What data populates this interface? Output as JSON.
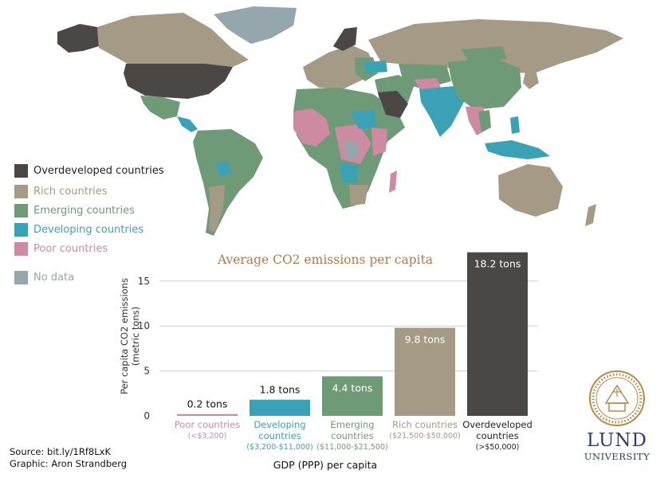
{
  "colors": {
    "overdeveloped": "#4a4745",
    "rich": "#a59a86",
    "emerging": "#6f9a78",
    "developing": "#3aa2b4",
    "poor": "#cd8aa0",
    "no_data": "#95a6ad",
    "axis_text": "#333333",
    "title": "#b07a4e",
    "logo": "#2a3e73",
    "seal": "#b48a4a"
  },
  "legend": [
    {
      "key": "overdeveloped",
      "label": "Overdeveloped countries",
      "text_color": "#222222"
    },
    {
      "key": "rich",
      "label": "Rich countries",
      "text_color": "#a59a86"
    },
    {
      "key": "emerging",
      "label": "Emerging countries",
      "text_color": "#6f9a78"
    },
    {
      "key": "developing",
      "label": "Developing countries",
      "text_color": "#3aa2b4"
    },
    {
      "key": "poor",
      "label": "Poor countries",
      "text_color": "#cd8aa0"
    },
    {
      "key": "no_data",
      "label": "No data",
      "text_color": "#95a6ad"
    }
  ],
  "chart_data": {
    "type": "bar",
    "title": "Average CO2 emissions per capita",
    "ylabel_lines": [
      "Per capita CO2 emissions",
      "(metric tons)"
    ],
    "xlabel": "GDP (PPP) per capita",
    "ylim": [
      0,
      18.2
    ],
    "yticks": [
      0,
      5,
      10,
      15
    ],
    "categories": [
      {
        "name_lines": [
          "Poor countries"
        ],
        "range": "(<$3,200)",
        "color_key": "poor"
      },
      {
        "name_lines": [
          "Developing",
          "countries"
        ],
        "range": "($3,200-$11,000)",
        "color_key": "developing"
      },
      {
        "name_lines": [
          "Emerging",
          "countries"
        ],
        "range": "($11,000-$21,500)",
        "color_key": "emerging"
      },
      {
        "name_lines": [
          "Rich countries"
        ],
        "range": "($21,500-$50,000)",
        "color_key": "rich"
      },
      {
        "name_lines": [
          "Overdeveloped",
          "countries"
        ],
        "range": "(>$50,000)",
        "color_key": "overdeveloped"
      }
    ],
    "values": [
      0.2,
      1.8,
      4.4,
      9.8,
      18.2
    ],
    "value_labels": [
      "0.2 tons",
      "1.8 tons",
      "4.4 tons",
      "9.8 tons",
      "18.2 tons"
    ]
  },
  "footer": {
    "source": "Source: bit.ly/1Rf8LxK",
    "graphic": "Graphic: Aron Strandberg"
  },
  "logo": {
    "line1": "LUND",
    "line2": "UNIVERSITY"
  }
}
